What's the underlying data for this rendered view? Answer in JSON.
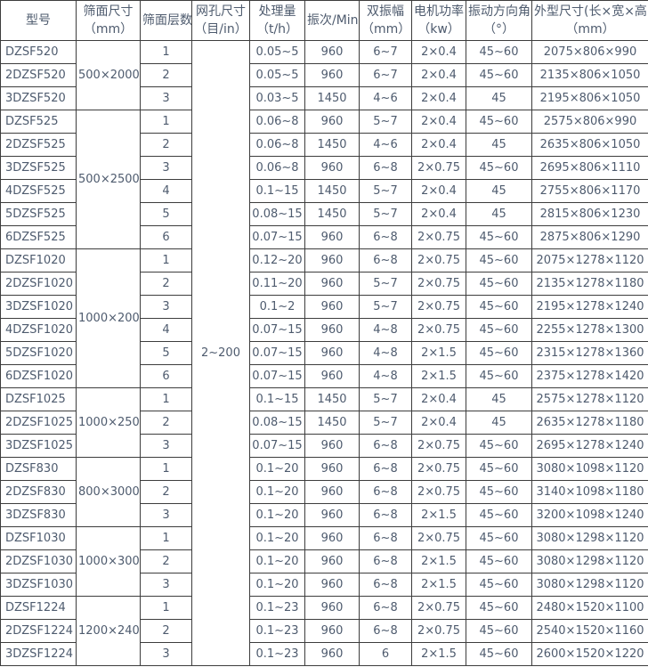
{
  "colors": {
    "text": "#4e5b6e",
    "border": "#3d3d3d",
    "background": "#ffffff"
  },
  "table": {
    "columns": [
      {
        "id": "model",
        "title": "型号",
        "unit": ""
      },
      {
        "id": "screen_size",
        "title": "筛面尺寸",
        "unit": "（mm）"
      },
      {
        "id": "layers",
        "title": "筛面层数",
        "unit": ""
      },
      {
        "id": "mesh",
        "title": "网孔尺寸",
        "unit": "（目/in）"
      },
      {
        "id": "capacity",
        "title": "处理量",
        "unit": "（t/h）"
      },
      {
        "id": "frequency",
        "title": "振次/Min",
        "unit": ""
      },
      {
        "id": "amplitude",
        "title": "双振幅",
        "unit": "（mm）"
      },
      {
        "id": "power",
        "title": "电机功率",
        "unit": "（kw）"
      },
      {
        "id": "angle",
        "title": "振动方向角",
        "unit": "（°）"
      },
      {
        "id": "dimensions",
        "title": "外型尺寸(长×宽×高)",
        "unit": "（mm）"
      }
    ],
    "mesh_size": "2~200",
    "size_groups": [
      {
        "size": "500×2000",
        "start": 0,
        "span": 3
      },
      {
        "size": "500×2500",
        "start": 3,
        "span": 6
      },
      {
        "size": "1000×2000",
        "start": 9,
        "span": 6
      },
      {
        "size": "1000×2500",
        "start": 15,
        "span": 3
      },
      {
        "size": "800×3000",
        "start": 18,
        "span": 3
      },
      {
        "size": "1000×3000",
        "start": 21,
        "span": 3
      },
      {
        "size": "1200×2400",
        "start": 24,
        "span": 3
      }
    ],
    "rows": [
      [
        "DZSF520",
        "1",
        "0.05~5",
        "960",
        "6~7",
        "2×0.4",
        "45~60",
        "2075×806×990"
      ],
      [
        "2DZSF520",
        "2",
        "0.05~5",
        "960",
        "6~7",
        "2×0.4",
        "45~60",
        "2135×806×1050"
      ],
      [
        "3DZSF520",
        "3",
        "0.03~5",
        "1450",
        "4~6",
        "2×0.4",
        "45",
        "2195×806×1050"
      ],
      [
        "DZSF525",
        "1",
        "0.06~8",
        "960",
        "5~7",
        "2×0.4",
        "45~60",
        "2575×806×990"
      ],
      [
        "2DZSF525",
        "2",
        "0.06~8",
        "1450",
        "4~6",
        "2×0.4",
        "45",
        "2635×806×1050"
      ],
      [
        "3DZSF525",
        "3",
        "0.06~8",
        "960",
        "6~8",
        "2×0.75",
        "45~60",
        "2695×806×1110"
      ],
      [
        "4DZSF525",
        "4",
        "0.1~15",
        "1450",
        "5~7",
        "2×0.4",
        "45",
        "2755×806×1170"
      ],
      [
        "5DZSF525",
        "5",
        "0.08~15",
        "1450",
        "5~7",
        "2×0.4",
        "45",
        "2815×806×1230"
      ],
      [
        "6DZSF525",
        "6",
        "0.07~15",
        "960",
        "6~8",
        "2×0.75",
        "45~60",
        "2875×806×1290"
      ],
      [
        "DZSF1020",
        "1",
        "0.12~20",
        "960",
        "6~8",
        "2×0.75",
        "45~60",
        "2075×1278×1120"
      ],
      [
        "2DZSF1020",
        "2",
        "0.11~20",
        "960",
        "5~7",
        "2×0.75",
        "45~60",
        "2135×1278×1180"
      ],
      [
        "3DZSF1020",
        "3",
        "0.1~2",
        "960",
        "5~7",
        "2×0.75",
        "45~60",
        "2195×1278×1240"
      ],
      [
        "4DZSF1020",
        "4",
        "0.07~15",
        "960",
        "4~8",
        "2×0.75",
        "45~60",
        "2255×1278×1300"
      ],
      [
        "5DZSF1020",
        "5",
        "0.07~15",
        "960",
        "4~8",
        "2×1.5",
        "45~60",
        "2315×1278×1360"
      ],
      [
        "6DZSF1020",
        "6",
        "0.07~15",
        "960",
        "4~8",
        "2×1.5",
        "45~60",
        "2375×1278×1420"
      ],
      [
        "DZSF1025",
        "1",
        "0.1~15",
        "1450",
        "5~7",
        "2×0.4",
        "45",
        "2575×1278×1120"
      ],
      [
        "2DZSF1025",
        "2",
        "0.08~15",
        "1450",
        "5~7",
        "2×0.4",
        "45",
        "2635×1278×1180"
      ],
      [
        "3DZSF1025",
        "3",
        "0.07~15",
        "960",
        "6~8",
        "2×0.75",
        "45~60",
        "2695×1278×1240"
      ],
      [
        "DZSF830",
        "1",
        "0.1~20",
        "960",
        "6~8",
        "2×0.75",
        "45~60",
        "3080×1098×1120"
      ],
      [
        "2DZSF830",
        "2",
        "0.1~20",
        "960",
        "6~8",
        "2×0.75",
        "45~60",
        "3140×1098×1180"
      ],
      [
        "3DZSF830",
        "3",
        "0.1~20",
        "960",
        "6~8",
        "2×1.5",
        "45~60",
        "3200×1098×1240"
      ],
      [
        "DZSF1030",
        "1",
        "0.1~20",
        "960",
        "6~8",
        "2×0.75",
        "45~60",
        "3080×1298×1120"
      ],
      [
        "2DZSF1030",
        "2",
        "0.1~20",
        "960",
        "6~8",
        "2×1.5",
        "45~60",
        "3080×1298×1120"
      ],
      [
        "3DZSF1030",
        "3",
        "0.1~20",
        "960",
        "6~8",
        "2×1.5",
        "45~60",
        "3080×1298×1120"
      ],
      [
        "DZSF1224",
        "1",
        "0.1~23",
        "960",
        "6~8",
        "2×0.75",
        "45~60",
        "2480×1520×1100"
      ],
      [
        "2DZSF1224",
        "2",
        "0.1~23",
        "960",
        "6~8",
        "2×0.75",
        "45~60",
        "2540×1520×1160"
      ],
      [
        "3DZSF1224",
        "3",
        "0.1~23",
        "960",
        "6",
        "2×1.5",
        "45~60",
        "2600×1520×1220"
      ]
    ]
  }
}
